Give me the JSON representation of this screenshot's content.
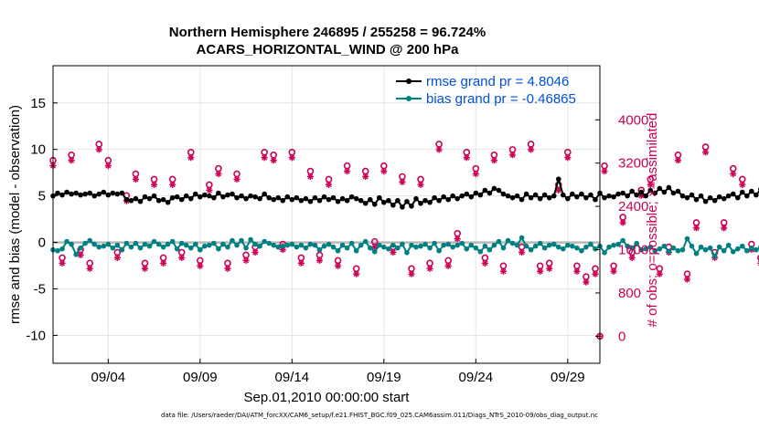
{
  "title": {
    "line1": "Northern Hemisphere 246895 / 255258 = 96.724%",
    "line2": "ACARS_HORIZONTAL_WIND @ 200 hPa"
  },
  "footnote": "data file: /Users/raeder/DAI/ATM_forcXX/CAM6_setup/f.e21.FHIST_BGC.f09_025.CAM6assim.011/Diags_NTrS_2010-09/obs_diag_output.nc",
  "colors": {
    "rmse": "#000000",
    "bias": "#008080",
    "obs": "#cc0055",
    "zero_line": "#b8b8b8",
    "legend_text": "#0050e0",
    "grid": "#e6e6e6"
  },
  "chart_data": {
    "type": "line",
    "title": "Northern Hemisphere 246895 / 255258 = 96.724%",
    "subtitle": "ACARS_HORIZONTAL_WIND @ 200 hPa",
    "xlabel": "Sep.01,2010 00:00:00 start",
    "ylabel": "rmse and bias (model - observation)",
    "ylabel_right": "# of obs: o=possible; ×=assimilated",
    "xlim": [
      1,
      30.75
    ],
    "ylim": [
      -13,
      19
    ],
    "ylim_right": [
      -500,
      5000
    ],
    "x_ticks": [
      4,
      9,
      14,
      19,
      24,
      29
    ],
    "x_tick_labels": [
      "09/04",
      "09/09",
      "09/14",
      "09/19",
      "09/24",
      "09/29"
    ],
    "y_ticks": [
      -10,
      -5,
      0,
      5,
      10,
      15
    ],
    "y_tick_labels": [
      "-10",
      "-5",
      "0",
      "5",
      "10",
      "15"
    ],
    "y_ticks_right": [
      0,
      800,
      1600,
      2400,
      3200,
      4000
    ],
    "y_tick_labels_right": [
      "0",
      "800",
      "1600",
      "2400",
      "3200",
      "4000"
    ],
    "legend": [
      "rmse grand pr = 4.8046",
      "bias grand pr = -0.46865"
    ],
    "legend_position": "top-right",
    "x_start": 1.0,
    "x_step": 0.25,
    "series": [
      {
        "name": "rmse grand pr = 4.8046",
        "axis": "left",
        "values": [
          5.0,
          5.3,
          5.1,
          5.4,
          5.2,
          5.3,
          5.1,
          5.2,
          5.3,
          5.0,
          5.2,
          5.4,
          5.1,
          5.3,
          5.2,
          5.3,
          4.6,
          4.5,
          4.7,
          4.4,
          4.9,
          4.7,
          5.0,
          4.5,
          4.6,
          4.3,
          4.8,
          4.9,
          4.6,
          5.0,
          4.7,
          5.2,
          4.9,
          5.1,
          5.0,
          4.8,
          5.3,
          4.9,
          5.1,
          5.2,
          4.8,
          5.0,
          4.7,
          5.0,
          4.9,
          4.7,
          5.2,
          4.8,
          4.6,
          4.8,
          4.5,
          4.9,
          4.6,
          4.8,
          4.5,
          4.7,
          4.4,
          4.8,
          4.5,
          4.9,
          4.6,
          4.8,
          4.4,
          4.7,
          4.5,
          4.9,
          4.7,
          4.5,
          4.2,
          4.6,
          4.1,
          4.8,
          4.3,
          4.5,
          4.0,
          4.5,
          3.8,
          4.4,
          3.9,
          4.7,
          4.2,
          4.5,
          4.3,
          4.8,
          4.5,
          4.9,
          4.6,
          5.0,
          4.7,
          5.0,
          5.2,
          4.9,
          5.3,
          5.1,
          5.6,
          5.3,
          5.8,
          5.6,
          5.2,
          5.0,
          4.8,
          5.0,
          4.6,
          5.2,
          4.8,
          5.1,
          4.7,
          5.1,
          4.8,
          5.0,
          6.8,
          5.1,
          4.7,
          5.2,
          4.9,
          5.2,
          4.8,
          5.1,
          4.6,
          5.3,
          4.8,
          5.0,
          4.9,
          5.2,
          5.3,
          5.0,
          5.5,
          5.1,
          5.4,
          5.0,
          5.6,
          5.3,
          5.8,
          5.4,
          5.9,
          5.3,
          5.5,
          5.0,
          4.8,
          5.1,
          4.6,
          5.0,
          4.4,
          4.8,
          4.5,
          4.9,
          4.7,
          5.0,
          5.2,
          4.8,
          5.4,
          5.0,
          5.5,
          5.1,
          5.7,
          5.3,
          5.8,
          5.4,
          5.6,
          5.2,
          5.6,
          5.0,
          5.5,
          5.8,
          5.3,
          5.9,
          5.6,
          5.2,
          5.5,
          5.0,
          5.3,
          4.9,
          5.5,
          5.0,
          5.3,
          4.8,
          5.2,
          4.9,
          5.4,
          5.0,
          5.5,
          5.8,
          5.2,
          4.7
        ]
      },
      {
        "name": "bias grand pr = -0.46865",
        "axis": "left",
        "values": [
          -0.8,
          -0.9,
          -0.7,
          0.1,
          -0.2,
          -1.3,
          -0.6,
          -0.1,
          0.2,
          -0.2,
          -0.5,
          -0.4,
          -0.2,
          -0.6,
          -0.3,
          -0.8,
          -0.1,
          -0.5,
          -0.1,
          -0.6,
          -0.2,
          -0.4,
          0.1,
          -0.2,
          -0.5,
          -0.2,
          0.1,
          -0.7,
          -0.1,
          -0.3,
          -0.6,
          -0.2,
          -0.8,
          -0.4,
          -0.3,
          -0.1,
          -0.7,
          -0.2,
          -0.5,
          0.2,
          -0.3,
          0.2,
          -0.6,
          0.3,
          -0.2,
          -0.4,
          0.1,
          -0.1,
          -0.3,
          -0.5,
          -0.4,
          -0.3,
          -0.2,
          -0.5,
          -0.3,
          -0.6,
          -0.2,
          -0.3,
          -0.8,
          -0.4,
          -0.2,
          -0.5,
          -0.9,
          -0.3,
          -0.6,
          -0.1,
          -0.9,
          -0.3,
          0.1,
          -0.6,
          -1.0,
          -0.3,
          -0.5,
          -0.7,
          -0.3,
          -0.6,
          -0.2,
          -1.1,
          -0.3,
          -0.5,
          -0.4,
          -0.2,
          -0.6,
          -0.1,
          -0.9,
          -0.3,
          -0.2,
          -0.5,
          -0.3,
          -0.1,
          -0.7,
          -0.3,
          -0.6,
          -1.0,
          -0.4,
          -0.8,
          -0.3,
          0.1,
          -0.6,
          0.2,
          -0.1,
          -0.3,
          0.5,
          -0.4,
          -0.8,
          -0.4,
          -0.1,
          -0.6,
          -0.3,
          -0.2,
          -0.5,
          -0.7,
          -0.3,
          -0.4,
          -0.6,
          -0.9,
          -0.5,
          -0.2,
          -0.7,
          -0.4,
          -1.1,
          -0.5,
          -0.3,
          -0.2,
          0.2,
          -0.4,
          -0.6,
          -0.1,
          -0.8,
          -0.7,
          -0.5,
          -0.9,
          -0.7,
          -0.4,
          -1.0,
          -0.6,
          -0.9,
          -0.8,
          0.4,
          -0.4,
          -1.2,
          -0.5,
          -0.8,
          -0.6,
          -1.5,
          -0.5,
          -0.9,
          -0.3,
          -1.0,
          -0.7,
          -0.4,
          -0.9,
          -0.6,
          -0.8,
          -0.5,
          -0.9,
          -1.4,
          -0.8,
          -1.1,
          -1.0,
          -0.7,
          -0.5,
          -0.9,
          -1.1,
          -0.6,
          -0.8,
          -1.0,
          -0.7,
          -0.4,
          -0.8,
          -1.0,
          -0.6,
          -0.9,
          -0.7,
          -0.5,
          -1.2,
          -0.9,
          -0.8,
          -0.7,
          -0.5,
          -0.8,
          -0.4,
          -0.6,
          -0.4
        ]
      },
      {
        "name": "possible obs (o)",
        "axis": "right",
        "step": 0.5,
        "values": [
          3250,
          1450,
          3350,
          1600,
          1350,
          3550,
          3250,
          1550,
          2600,
          3000,
          1350,
          2900,
          1450,
          2900,
          1550,
          3400,
          1400,
          2800,
          3100,
          1350,
          3000,
          1500,
          1650,
          3400,
          3350,
          1700,
          3400,
          1450,
          3050,
          1500,
          2900,
          1400,
          3150,
          1250,
          3050,
          1750,
          3150,
          1650,
          2950,
          1250,
          2900,
          1350,
          3550,
          1400,
          1900,
          3400,
          3100,
          1450,
          3350,
          1300,
          3450,
          1650,
          3550,
          1300,
          1350,
          2800,
          3400,
          1300,
          1100,
          1250,
          3150,
          1300,
          2200,
          1550,
          2700,
          2900,
          1250,
          1650,
          3350,
          1150,
          2100,
          3500,
          1550,
          2100,
          3100,
          2900,
          1700,
          1450,
          2850,
          1300,
          2650,
          3250,
          1600,
          1150,
          3350,
          2850,
          3100,
          2900,
          2450,
          3150,
          1450,
          3200,
          1600,
          3050,
          1550,
          1400,
          1300,
          2600,
          3050,
          1400
        ]
      },
      {
        "name": "assimilated obs (×)",
        "axis": "right",
        "step": 0.5,
        "values": [
          3150,
          1350,
          3250,
          1500,
          1250,
          3450,
          3150,
          1450,
          2500,
          2900,
          1250,
          2800,
          1350,
          2800,
          1450,
          3300,
          1300,
          2700,
          3000,
          1250,
          2900,
          1400,
          1550,
          3300,
          3250,
          1600,
          3300,
          1350,
          2950,
          1400,
          2800,
          1300,
          3050,
          1150,
          2950,
          1650,
          3050,
          1550,
          2850,
          1150,
          2800,
          1250,
          3450,
          1300,
          1800,
          3300,
          3000,
          1350,
          3250,
          1200,
          3350,
          1550,
          3450,
          1200,
          1250,
          2700,
          3300,
          1200,
          1000,
          1150,
          3050,
          1200,
          2100,
          1450,
          2600,
          2800,
          1150,
          1550,
          3250,
          1050,
          2000,
          3400,
          1450,
          2000,
          3000,
          2800,
          1600,
          1350,
          2750,
          1200,
          2550,
          3150,
          1500,
          1050,
          3250,
          2750,
          3000,
          2800,
          2350,
          3050,
          1350,
          3100,
          1500,
          2950,
          1450,
          1300,
          1200,
          2500,
          2950,
          1300
        ]
      }
    ],
    "extra_points": [
      {
        "label": "zero-count marker",
        "x": 30.75,
        "y_right": 0
      }
    ]
  }
}
